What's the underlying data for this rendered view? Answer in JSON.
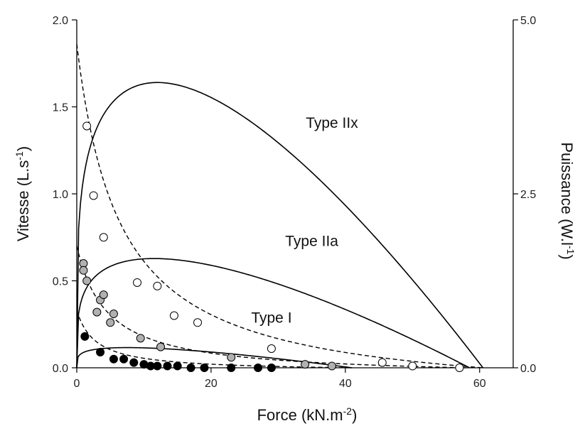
{
  "chart_data": {
    "type": "scatter",
    "xlabel": "Force (kN.m",
    "xlabel_sup": "-2",
    "xlabel_end": ")",
    "ylabel": "Vitesse (L.s",
    "ylabel_sup": "-1",
    "ylabel_end": ")",
    "y2label": "Puissance (W.l",
    "y2label_sup": "-1",
    "y2label_end": ")",
    "xlim": [
      0,
      65
    ],
    "ylim": [
      0,
      2.0
    ],
    "y2lim": [
      0,
      5.0
    ],
    "xticks": [
      0,
      20,
      40,
      60
    ],
    "xtick_labels": [
      "0",
      "20",
      "40",
      "60"
    ],
    "yticks": [
      0,
      0.5,
      1.0,
      1.5,
      2.0
    ],
    "ytick_labels": [
      "0.0",
      "0.5",
      "1.0",
      "1.5",
      "2.0"
    ],
    "y2ticks": [
      0,
      2.5,
      5.0
    ],
    "y2tick_labels": [
      "0.0",
      "2.5",
      "5.0"
    ],
    "grid": false,
    "series": [
      {
        "name": "Type IIx",
        "fill": "#ffffff",
        "label_at": [
          38,
          1.38
        ],
        "velocity_curve": {
          "v0": 1.86,
          "a": 6.5,
          "f0": 60.5
        },
        "power_curve": {
          "pmax": 4.1,
          "f_peak": 12,
          "f0": 60.5
        },
        "points": [
          [
            1.5,
            1.39
          ],
          [
            2.5,
            0.99
          ],
          [
            4.0,
            0.75
          ],
          [
            9.0,
            0.49
          ],
          [
            12.0,
            0.47
          ],
          [
            14.5,
            0.3
          ],
          [
            18.0,
            0.26
          ],
          [
            29.0,
            0.11
          ],
          [
            45.5,
            0.03
          ],
          [
            50.0,
            0.01
          ],
          [
            57.0,
            0.0
          ]
        ]
      },
      {
        "name": "Type IIa",
        "fill": "#b0b0b0",
        "label_at": [
          35,
          0.7
        ],
        "velocity_curve": {
          "v0": 0.7,
          "a": 4.5,
          "f0": 58
        },
        "power_curve": {
          "pmax": 1.57,
          "f_peak": 11.5,
          "f0": 58.5
        },
        "points": [
          [
            1.0,
            0.6
          ],
          [
            1.0,
            0.56
          ],
          [
            1.5,
            0.5
          ],
          [
            3.0,
            0.32
          ],
          [
            3.5,
            0.39
          ],
          [
            4.0,
            0.42
          ],
          [
            5.0,
            0.26
          ],
          [
            5.5,
            0.31
          ],
          [
            9.5,
            0.17
          ],
          [
            12.5,
            0.12
          ],
          [
            23.0,
            0.06
          ],
          [
            34.0,
            0.02
          ],
          [
            38.0,
            0.01
          ]
        ]
      },
      {
        "name": "Type I",
        "fill": "#000000",
        "label_at": [
          29,
          0.26
        ],
        "velocity_curve": {
          "v0": 0.33,
          "a": 2.8,
          "f0": 41
        },
        "power_curve": {
          "pmax": 0.29,
          "f_peak": 7.5,
          "f0": 41
        },
        "points": [
          [
            1.2,
            0.18
          ],
          [
            3.5,
            0.09
          ],
          [
            5.5,
            0.05
          ],
          [
            7.0,
            0.05
          ],
          [
            8.5,
            0.03
          ],
          [
            10.0,
            0.02
          ],
          [
            11.0,
            0.01
          ],
          [
            12.0,
            0.01
          ],
          [
            13.5,
            0.01
          ],
          [
            15.0,
            0.01
          ],
          [
            17.0,
            0.0
          ],
          [
            19.0,
            0.0
          ],
          [
            23.0,
            0.0
          ],
          [
            27.0,
            0.0
          ],
          [
            29.0,
            0.0
          ]
        ]
      }
    ]
  }
}
